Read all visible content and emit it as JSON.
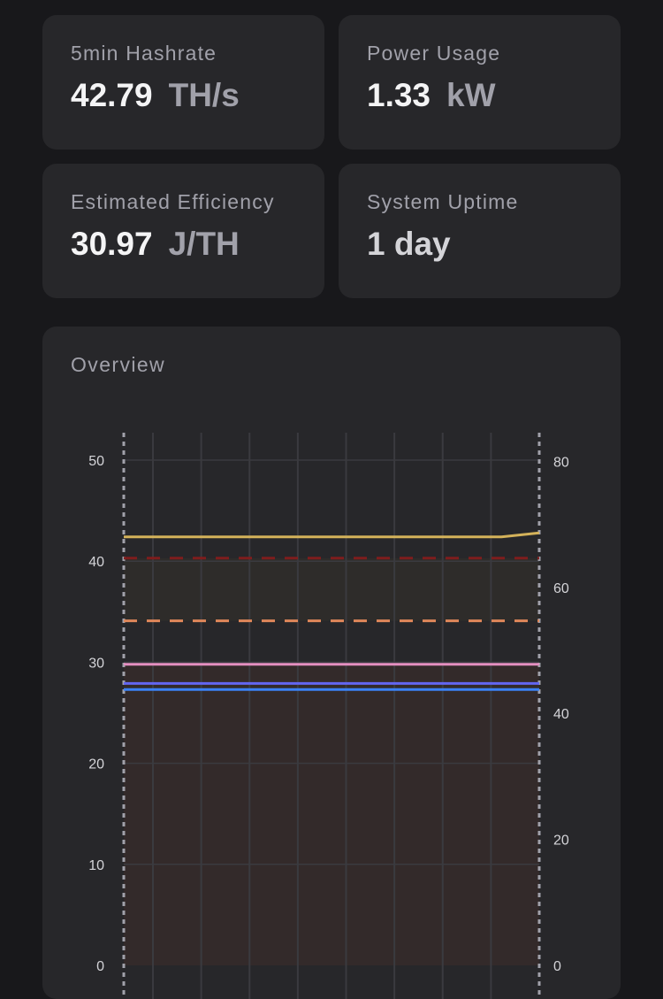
{
  "stats": [
    {
      "label": "5min Hashrate",
      "value": "42.79",
      "unit": "TH/s"
    },
    {
      "label": "Power Usage",
      "value": "1.33",
      "unit": "kW"
    },
    {
      "label": "Estimated Efficiency",
      "value": "30.97",
      "unit": "J/TH"
    },
    {
      "label": "System Uptime",
      "value": "1 day",
      "unit": ""
    }
  ],
  "overview": {
    "title": "Overview"
  },
  "colors": {
    "background": "#18181b",
    "card": "#27272a",
    "hashrate": "#d4b25a",
    "threshold_red": "#7f1d1d",
    "threshold_orange": "#e0875a",
    "pink": "#e48fc0",
    "blue_1": "#6366f1",
    "blue_2": "#3b82f6",
    "band_upper": "#2e2c2a",
    "band_lower": "#332a2a"
  },
  "chart_data": {
    "type": "line",
    "x_points": 12,
    "left_axis": {
      "ylim": [
        0,
        50
      ],
      "ticks": [
        0,
        10,
        20,
        30,
        40,
        50
      ]
    },
    "right_axis": {
      "ylim": [
        0,
        80
      ],
      "ticks": [
        0,
        20,
        40,
        60,
        80
      ]
    },
    "series": [
      {
        "axis": "left",
        "style": "solid",
        "color": "#d4b25a",
        "values": [
          42.4,
          42.4,
          42.4,
          42.4,
          42.4,
          42.4,
          42.4,
          42.4,
          42.4,
          42.4,
          42.4,
          42.8
        ]
      },
      {
        "axis": "left",
        "style": "dashed",
        "color": "#7f1d1d",
        "values": [
          40.3,
          40.3,
          40.3,
          40.3,
          40.3,
          40.3,
          40.3,
          40.3,
          40.3,
          40.3,
          40.3,
          40.3
        ]
      },
      {
        "axis": "left",
        "style": "dashed",
        "color": "#e0875a",
        "values": [
          34.1,
          34.1,
          34.1,
          34.1,
          34.1,
          34.1,
          34.1,
          34.1,
          34.1,
          34.1,
          34.1,
          34.1
        ]
      },
      {
        "axis": "left",
        "style": "solid",
        "color": "#e48fc0",
        "values": [
          29.8,
          29.8,
          29.8,
          29.8,
          29.8,
          29.8,
          29.8,
          29.8,
          29.8,
          29.8,
          29.8,
          29.8
        ]
      },
      {
        "axis": "left",
        "style": "solid",
        "color": "#6366f1",
        "values": [
          27.9,
          27.9,
          27.9,
          27.9,
          27.9,
          27.9,
          27.9,
          27.9,
          27.9,
          27.9,
          27.9,
          27.9
        ]
      },
      {
        "axis": "left",
        "style": "solid",
        "color": "#3b82f6",
        "values": [
          27.3,
          27.3,
          27.3,
          27.3,
          27.3,
          27.3,
          27.3,
          27.3,
          27.3,
          27.3,
          27.3,
          27.3
        ]
      }
    ],
    "bands": [
      {
        "from": 34.1,
        "to": 40.3,
        "color": "#2e2c2a"
      },
      {
        "from": 0,
        "to": 29.8,
        "color": "#332a2a"
      }
    ],
    "grid": true
  }
}
